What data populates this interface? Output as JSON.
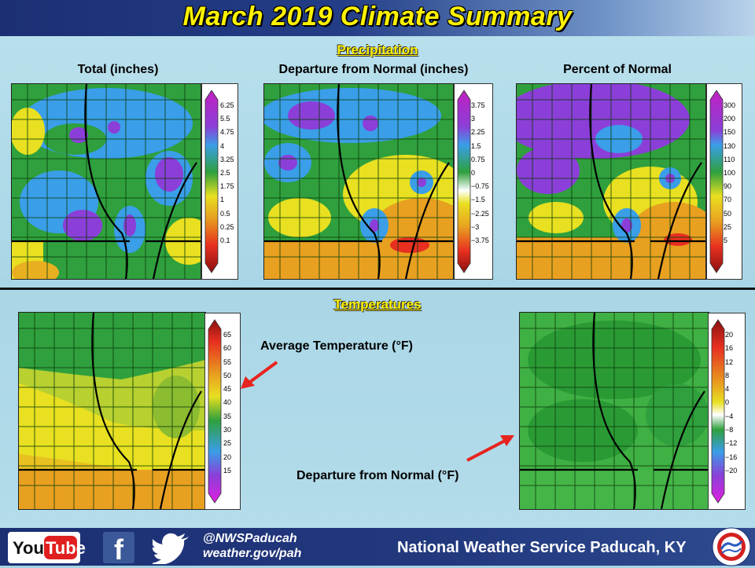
{
  "header": {
    "title": "March 2019 Climate Summary"
  },
  "precipitation": {
    "section_title": "Precipitation",
    "maps": [
      {
        "title": "Total (inches)",
        "legend": [
          "6.25",
          "5.5",
          "4.75",
          "4",
          "3.25",
          "2.5",
          "1.75",
          "1",
          "0.5",
          "0.25",
          "0.1"
        ]
      },
      {
        "title": "Departure from Normal (inches)",
        "legend": [
          "3.75",
          "3",
          "2.25",
          "1.5",
          "0.75",
          "0",
          "−0.75",
          "−1.5",
          "−2.25",
          "−3",
          "−3.75"
        ]
      },
      {
        "title": "Percent of Normal",
        "legend": [
          "300",
          "200",
          "150",
          "130",
          "110",
          "100",
          "90",
          "70",
          "50",
          "25",
          "5"
        ]
      }
    ]
  },
  "temperatures": {
    "section_title": "Temperatures",
    "average_label": "Average Temperature (°F)",
    "departure_label": "Departure from Normal (°F)",
    "average_legend": [
      "65",
      "60",
      "55",
      "50",
      "45",
      "40",
      "35",
      "30",
      "25",
      "20",
      "15"
    ],
    "departure_legend": [
      "20",
      "16",
      "12",
      "8",
      "4",
      "0",
      "−4",
      "−8",
      "−12",
      "−16",
      "−20"
    ]
  },
  "footer": {
    "youtube_you": "You",
    "youtube_tube": "Tube",
    "facebook_letter": "f",
    "twitter_handle": "@NWSPaducah",
    "website": "weather.gov/pah",
    "office": "National Weather Service Paducah, KY"
  },
  "icons": [
    "youtube-icon",
    "facebook-icon",
    "twitter-icon",
    "nws-logo-icon",
    "arrow-icon"
  ],
  "colors": {
    "title_yellow": "#fff200",
    "arrow_red": "#e8231f",
    "header_blue": "#1c2f73"
  }
}
